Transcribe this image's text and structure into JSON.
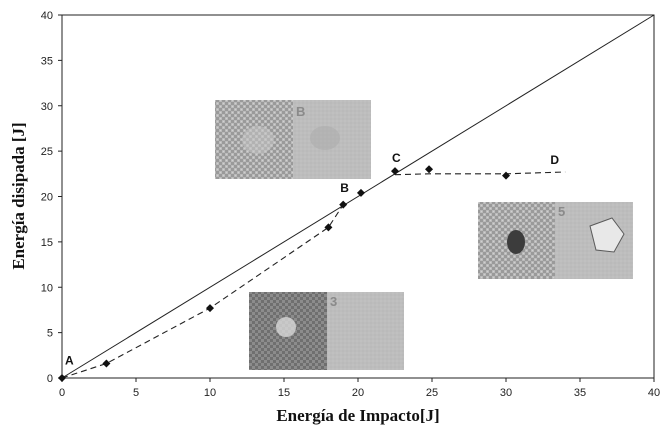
{
  "chart_data": {
    "type": "scatter",
    "xlabel": "Energía de Impacto[J]",
    "ylabel": "Energía disipada  [J]",
    "xlim": [
      0,
      40
    ],
    "ylim": [
      0,
      40
    ],
    "xticks": [
      0,
      5,
      10,
      15,
      20,
      25,
      30,
      35,
      40
    ],
    "yticks": [
      0,
      5,
      10,
      15,
      20,
      25,
      30,
      35,
      40
    ],
    "grid": false,
    "x": [
      0,
      3,
      10,
      18,
      19,
      20.2,
      22.5,
      24.8,
      30
    ],
    "y": [
      0,
      1.6,
      7.7,
      16.6,
      19.1,
      20.4,
      22.8,
      23.0,
      22.3
    ],
    "reference_line": {
      "x": [
        0,
        40
      ],
      "y": [
        0,
        40
      ],
      "style": "solid"
    },
    "fit_curves": [
      {
        "x": [
          0,
          3,
          10,
          18,
          19
        ],
        "y": [
          0,
          1.6,
          7.7,
          16.6,
          19.1
        ],
        "style": "dashed"
      },
      {
        "x": [
          22.5,
          24.8,
          30,
          34
        ],
        "y": [
          22.4,
          22.5,
          22.5,
          22.7
        ],
        "style": "dashed"
      }
    ],
    "annotations": [
      {
        "text": "A",
        "x": 0.2,
        "y": 1.5
      },
      {
        "text": "B",
        "x": 18.8,
        "y": 20.5
      },
      {
        "text": "C",
        "x": 22.3,
        "y": 23.8
      },
      {
        "text": "D",
        "x": 33,
        "y": 23.6
      }
    ],
    "inset_photos": [
      {
        "label": "B",
        "near_point": "B"
      },
      {
        "label": "3",
        "near_point": "A"
      },
      {
        "label": "5",
        "near_point": "D"
      }
    ]
  }
}
